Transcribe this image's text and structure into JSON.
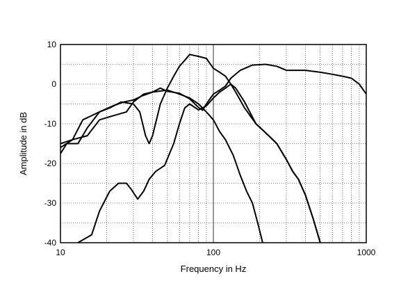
{
  "chart_data": {
    "type": "line",
    "xlabel": "Frequency in Hz",
    "ylabel": "Amplitude in dB",
    "x_scale": "log",
    "xlim": [
      10,
      1000
    ],
    "ylim": [
      -40,
      10
    ],
    "x_ticks": [
      10,
      100,
      1000
    ],
    "x_tick_labels": [
      "10",
      "100",
      "1000"
    ],
    "y_ticks": [
      10,
      0,
      -10,
      -20,
      -30,
      -40
    ],
    "y_tick_labels": [
      "10",
      "0",
      "-10",
      "-20",
      "-30",
      "-40"
    ],
    "grid": true,
    "series": [
      {
        "points": [
          [
            10,
            -15
          ],
          [
            12,
            -14
          ],
          [
            14,
            -9
          ],
          [
            18,
            -7
          ],
          [
            22,
            -5.5
          ],
          [
            26,
            -4.5
          ],
          [
            30,
            -4
          ],
          [
            34,
            -3
          ],
          [
            40,
            -2
          ],
          [
            50,
            -1.5
          ],
          [
            60,
            -2.5
          ],
          [
            70,
            -3.5
          ],
          [
            80,
            -5
          ],
          [
            90,
            -7
          ],
          [
            100,
            -9
          ],
          [
            110,
            -12
          ],
          [
            120,
            -14
          ],
          [
            135,
            -18
          ],
          [
            150,
            -23
          ],
          [
            165,
            -27
          ],
          [
            180,
            -30
          ],
          [
            195,
            -35
          ],
          [
            210,
            -40
          ]
        ]
      },
      {
        "points": [
          [
            10,
            -16
          ],
          [
            12,
            -14
          ],
          [
            15,
            -13
          ],
          [
            18,
            -9
          ],
          [
            22,
            -8
          ],
          [
            27,
            -7
          ],
          [
            30,
            -4.5
          ],
          [
            35,
            -2.5
          ],
          [
            40,
            -2
          ],
          [
            45,
            -1
          ],
          [
            50,
            -1.8
          ],
          [
            60,
            -2.3
          ],
          [
            70,
            -3.7
          ],
          [
            80,
            -5.9
          ],
          [
            85,
            -6.6
          ],
          [
            90,
            -5
          ],
          [
            100,
            -2.5
          ],
          [
            110,
            -1.5
          ],
          [
            120,
            -0.5
          ],
          [
            130,
            1.5
          ],
          [
            150,
            3.5
          ],
          [
            180,
            4.8
          ],
          [
            220,
            5
          ],
          [
            260,
            4.5
          ],
          [
            300,
            3.5
          ],
          [
            400,
            3.5
          ],
          [
            500,
            3
          ],
          [
            600,
            2.5
          ],
          [
            700,
            2
          ],
          [
            800,
            1.5
          ],
          [
            900,
            0
          ],
          [
            1000,
            -2.5
          ]
        ]
      },
      {
        "points": [
          [
            10,
            -17.5
          ],
          [
            11,
            -15
          ],
          [
            13,
            -15
          ],
          [
            15,
            -11
          ],
          [
            18,
            -7
          ],
          [
            21,
            -6
          ],
          [
            25,
            -4.5
          ],
          [
            30,
            -5
          ],
          [
            33,
            -7
          ],
          [
            36,
            -13
          ],
          [
            38,
            -15
          ],
          [
            40,
            -13
          ],
          [
            45,
            -5
          ],
          [
            50,
            -1
          ],
          [
            55,
            2
          ],
          [
            60,
            4.5
          ],
          [
            65,
            6
          ],
          [
            70,
            7.5
          ],
          [
            80,
            7
          ],
          [
            90,
            6.5
          ],
          [
            100,
            4
          ],
          [
            110,
            3
          ],
          [
            120,
            2
          ],
          [
            130,
            0
          ],
          [
            140,
            -2
          ],
          [
            160,
            -6
          ],
          [
            190,
            -10
          ],
          [
            230,
            -13
          ],
          [
            260,
            -15
          ],
          [
            300,
            -19
          ],
          [
            330,
            -22
          ],
          [
            360,
            -24
          ],
          [
            400,
            -28
          ],
          [
            450,
            -34
          ],
          [
            500,
            -40
          ]
        ]
      },
      {
        "points": [
          [
            13,
            -40
          ],
          [
            16,
            -38
          ],
          [
            18,
            -32
          ],
          [
            21,
            -27
          ],
          [
            24,
            -25
          ],
          [
            27,
            -25
          ],
          [
            29,
            -26.5
          ],
          [
            32,
            -29
          ],
          [
            35,
            -27
          ],
          [
            38,
            -24
          ],
          [
            42,
            -22
          ],
          [
            48,
            -20.5
          ],
          [
            55,
            -15
          ],
          [
            60,
            -10
          ],
          [
            65,
            -6
          ],
          [
            70,
            -5
          ],
          [
            80,
            -6.5
          ],
          [
            90,
            -5.5
          ],
          [
            100,
            -3.5
          ],
          [
            110,
            -2
          ],
          [
            120,
            -1
          ],
          [
            130,
            0
          ],
          [
            140,
            -1
          ],
          [
            160,
            -4.5
          ],
          [
            190,
            -10
          ],
          [
            230,
            -13
          ],
          [
            260,
            -15
          ],
          [
            300,
            -19
          ],
          [
            330,
            -22
          ],
          [
            360,
            -24
          ],
          [
            400,
            -28
          ],
          [
            450,
            -34
          ],
          [
            500,
            -40
          ]
        ]
      }
    ]
  }
}
